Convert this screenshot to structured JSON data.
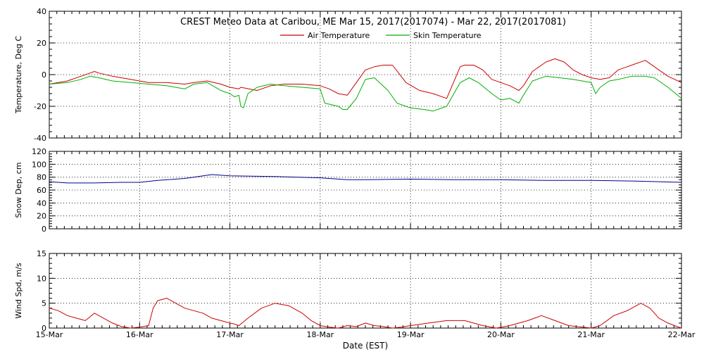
{
  "title": "CREST Meteo Data at Caribou, ME   Mar 15, 2017(2017074) - Mar 22, 2017(2017081)",
  "xlabel": "Date (EST)",
  "legend": [
    {
      "name": "Air Temperature",
      "color": "#cc0000"
    },
    {
      "name": "Skin Temperature",
      "color": "#00b000"
    }
  ],
  "chart_data": [
    {
      "type": "line",
      "ylabel": "Temperature, Deg C",
      "xlim": [
        0,
        7
      ],
      "ylim": [
        -40,
        40
      ],
      "yticks": [
        -40,
        -20,
        0,
        20,
        40
      ],
      "x_ticklabels": [
        "15-Mar",
        "16-Mar",
        "17-Mar",
        "18-Mar",
        "19-Mar",
        "20-Mar",
        "21-Mar",
        "22-Mar"
      ],
      "grid": true,
      "legend_position": "top-center",
      "series": [
        {
          "name": "Air Temperature",
          "color": "#cc0000",
          "x": [
            0,
            0.2,
            0.35,
            0.45,
            0.5,
            0.55,
            0.7,
            0.9,
            1.1,
            1.3,
            1.5,
            1.6,
            1.75,
            1.9,
            2.0,
            2.1,
            2.12,
            2.3,
            2.45,
            2.6,
            2.8,
            3.0,
            3.1,
            3.2,
            3.3,
            3.4,
            3.5,
            3.6,
            3.7,
            3.8,
            3.95,
            4.1,
            4.25,
            4.4,
            4.55,
            4.6,
            4.7,
            4.8,
            4.9,
            5.0,
            5.1,
            5.2,
            5.25,
            5.35,
            5.5,
            5.6,
            5.7,
            5.8,
            5.9,
            6.0,
            6.1,
            6.2,
            6.3,
            6.45,
            6.6,
            6.7,
            6.85,
            7.0
          ],
          "y": [
            -6,
            -4,
            -1,
            1,
            2,
            1,
            -1,
            -3,
            -5,
            -5,
            -6,
            -5,
            -4,
            -6,
            -8,
            -9,
            -8,
            -10,
            -7,
            -6,
            -6,
            -7,
            -9,
            -12,
            -13,
            -5,
            3,
            5,
            6,
            6,
            -5,
            -10,
            -12,
            -15,
            5,
            6,
            6,
            3,
            -3,
            -5,
            -7,
            -10,
            -7,
            2,
            8,
            10,
            8,
            3,
            0,
            -2,
            -3,
            -2,
            3,
            6,
            9,
            5,
            -1,
            -5
          ]
        },
        {
          "name": "Skin Temperature",
          "color": "#00b000",
          "x": [
            0,
            0.2,
            0.35,
            0.45,
            0.55,
            0.7,
            0.9,
            1.1,
            1.3,
            1.5,
            1.6,
            1.75,
            1.9,
            2.0,
            2.05,
            2.1,
            2.12,
            2.15,
            2.2,
            2.3,
            2.45,
            2.6,
            2.8,
            3.0,
            3.05,
            3.2,
            3.25,
            3.3,
            3.4,
            3.5,
            3.6,
            3.75,
            3.85,
            4.0,
            4.15,
            4.25,
            4.4,
            4.55,
            4.65,
            4.75,
            4.9,
            5.0,
            5.1,
            5.2,
            5.25,
            5.35,
            5.5,
            5.65,
            5.8,
            5.9,
            6.0,
            6.05,
            6.1,
            6.2,
            6.3,
            6.45,
            6.6,
            6.7,
            6.85,
            7.0
          ],
          "y": [
            -6,
            -5,
            -3,
            -1,
            -2,
            -4,
            -5,
            -6,
            -7,
            -9,
            -6,
            -5,
            -10,
            -12,
            -14,
            -13,
            -20,
            -21,
            -12,
            -8,
            -6,
            -7,
            -8,
            -9,
            -18,
            -20,
            -22,
            -22,
            -15,
            -3,
            -2,
            -10,
            -18,
            -21,
            -22,
            -23,
            -20,
            -5,
            -2,
            -5,
            -12,
            -16,
            -15,
            -18,
            -13,
            -4,
            -1,
            -2,
            -3,
            -4,
            -5,
            -12,
            -8,
            -4,
            -3,
            -1,
            -1,
            -2,
            -8,
            -15
          ]
        }
      ]
    },
    {
      "type": "line",
      "ylabel": "Snow Dep, cm",
      "xlim": [
        0,
        7
      ],
      "ylim": [
        0,
        120
      ],
      "yticks": [
        0,
        20,
        40,
        60,
        80,
        100,
        120
      ],
      "x_ticklabels": [
        "15-Mar",
        "16-Mar",
        "17-Mar",
        "18-Mar",
        "19-Mar",
        "20-Mar",
        "21-Mar",
        "22-Mar"
      ],
      "grid": true,
      "series": [
        {
          "name": "",
          "color": "#00008b",
          "x": [
            0,
            0.2,
            0.5,
            0.8,
            1.0,
            1.2,
            1.5,
            1.8,
            2.0,
            2.5,
            3.0,
            3.3,
            3.5,
            4.0,
            4.5,
            5.0,
            5.5,
            6.0,
            6.5,
            7.0
          ],
          "y": [
            73,
            71,
            71,
            72,
            72,
            75,
            78,
            84,
            82,
            81,
            79,
            76,
            76,
            77,
            76,
            76,
            75,
            75,
            74,
            72
          ]
        }
      ]
    },
    {
      "type": "line",
      "ylabel": "Wind Spd, m/s",
      "xlim": [
        0,
        7
      ],
      "ylim": [
        0,
        15
      ],
      "yticks": [
        0,
        5,
        10,
        15
      ],
      "x_ticklabels": [
        "15-Mar",
        "16-Mar",
        "17-Mar",
        "18-Mar",
        "19-Mar",
        "20-Mar",
        "21-Mar",
        "22-Mar"
      ],
      "grid": true,
      "series": [
        {
          "name": "",
          "color": "#cc0000",
          "x": [
            0,
            0.1,
            0.2,
            0.3,
            0.4,
            0.5,
            0.6,
            0.7,
            0.8,
            0.9,
            1.0,
            1.1,
            1.15,
            1.2,
            1.3,
            1.4,
            1.5,
            1.6,
            1.7,
            1.8,
            1.9,
            2.0,
            2.05,
            2.1,
            2.2,
            2.35,
            2.5,
            2.65,
            2.8,
            2.9,
            3.0,
            3.1,
            3.2,
            3.3,
            3.4,
            3.5,
            3.6,
            3.7,
            3.8,
            3.9,
            4.0,
            4.2,
            4.4,
            4.6,
            4.8,
            4.95,
            5.1,
            5.3,
            5.45,
            5.6,
            5.75,
            5.9,
            6.0,
            6.1,
            6.25,
            6.4,
            6.55,
            6.65,
            6.75,
            6.85,
            6.95,
            7.0
          ],
          "y": [
            4,
            3.5,
            2.5,
            2,
            1.5,
            3,
            2,
            1,
            0.3,
            0,
            0.2,
            0.5,
            4,
            5.5,
            6,
            5,
            4,
            3.5,
            3,
            2,
            1.5,
            1,
            0.8,
            0.5,
            2,
            4,
            5,
            4.5,
            3,
            1.5,
            0.5,
            0.2,
            0,
            0.5,
            0.3,
            1,
            0.5,
            0.3,
            0,
            0.2,
            0.5,
            1,
            1.5,
            1.5,
            0.5,
            0,
            0.5,
            1.5,
            2.5,
            1.5,
            0.5,
            0.2,
            0,
            0.5,
            2.5,
            3.5,
            5,
            4,
            2,
            1,
            0.3,
            0
          ]
        }
      ]
    }
  ]
}
